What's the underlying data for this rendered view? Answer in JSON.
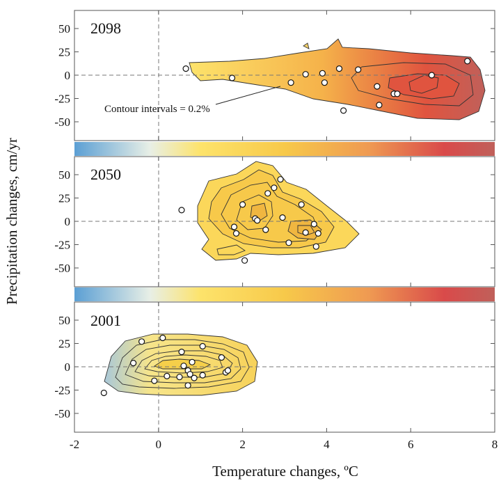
{
  "figure": {
    "xlabel": "Temperature changes, ºC",
    "ylabel": "Precipitation changes, cm/yr",
    "annotation": "Contour intervals = 0.2%",
    "colors": {
      "bar_stops": [
        "#5b9fd4",
        "#e8efe6",
        "#fde36b",
        "#f7c94a",
        "#ef9a52",
        "#d94a4a",
        "#c0605a"
      ],
      "contour_fill_2098": [
        "#fde06a",
        "#f2a050",
        "#d94a46"
      ],
      "contour_fill_2050": [
        "#fbd75a",
        "#f0b640"
      ],
      "contour_fill_2001": [
        "#b8cfd8",
        "#f7e27a",
        "#f5cf4a"
      ]
    }
  },
  "chart_data": [
    {
      "type": "scatter",
      "panel": "2098",
      "title": "2098",
      "xlabel": "Temperature changes, ºC",
      "ylabel": "Precipitation changes, cm/yr",
      "xlim": [
        -2,
        8
      ],
      "ylim": [
        -70,
        70
      ],
      "x_ticks": [
        "-2",
        "0",
        "2",
        "4",
        "6",
        "8"
      ],
      "y_ticks": [
        "50",
        "25",
        "0",
        "-25",
        "-50"
      ],
      "points": [
        {
          "x": 0.65,
          "y": 7
        },
        {
          "x": 1.75,
          "y": -3
        },
        {
          "x": 3.15,
          "y": -8
        },
        {
          "x": 3.5,
          "y": 1
        },
        {
          "x": 3.9,
          "y": 2
        },
        {
          "x": 3.95,
          "y": -8
        },
        {
          "x": 4.3,
          "y": 7
        },
        {
          "x": 4.4,
          "y": -38
        },
        {
          "x": 4.75,
          "y": 6
        },
        {
          "x": 5.2,
          "y": -12
        },
        {
          "x": 5.25,
          "y": -32
        },
        {
          "x": 5.6,
          "y": -20
        },
        {
          "x": 5.68,
          "y": -20
        },
        {
          "x": 6.5,
          "y": 0
        },
        {
          "x": 7.35,
          "y": 15
        }
      ],
      "grid": false
    },
    {
      "type": "scatter",
      "panel": "2050",
      "title": "2050",
      "xlabel": "Temperature changes, ºC",
      "ylabel": "Precipitation changes, cm/yr",
      "xlim": [
        -2,
        8
      ],
      "ylim": [
        -70,
        70
      ],
      "x_ticks": [
        "-2",
        "0",
        "2",
        "4",
        "6",
        "8"
      ],
      "y_ticks": [
        "50",
        "25",
        "0",
        "-25",
        "-50"
      ],
      "points": [
        {
          "x": 0.55,
          "y": 12
        },
        {
          "x": 1.8,
          "y": -6
        },
        {
          "x": 1.85,
          "y": -13
        },
        {
          "x": 2.0,
          "y": 18
        },
        {
          "x": 2.05,
          "y": -42
        },
        {
          "x": 2.3,
          "y": 3
        },
        {
          "x": 2.35,
          "y": 1
        },
        {
          "x": 2.6,
          "y": 30
        },
        {
          "x": 2.75,
          "y": 36
        },
        {
          "x": 2.55,
          "y": -9
        },
        {
          "x": 2.9,
          "y": 45
        },
        {
          "x": 2.95,
          "y": 4
        },
        {
          "x": 3.1,
          "y": -23
        },
        {
          "x": 3.4,
          "y": 18
        },
        {
          "x": 3.5,
          "y": -12
        },
        {
          "x": 3.7,
          "y": -3
        },
        {
          "x": 3.75,
          "y": -27
        },
        {
          "x": 3.8,
          "y": -13
        }
      ],
      "grid": false
    },
    {
      "type": "scatter",
      "panel": "2001",
      "title": "2001",
      "xlabel": "Temperature changes, ºC",
      "ylabel": "Precipitation changes, cm/yr",
      "xlim": [
        -2,
        8
      ],
      "ylim": [
        -70,
        70
      ],
      "x_ticks": [
        "-2",
        "0",
        "2",
        "4",
        "6",
        "8"
      ],
      "y_ticks": [
        "50",
        "25",
        "0",
        "-25",
        "-50"
      ],
      "points": [
        {
          "x": -1.3,
          "y": -28
        },
        {
          "x": -0.6,
          "y": 4
        },
        {
          "x": -0.4,
          "y": 27
        },
        {
          "x": -0.1,
          "y": -15
        },
        {
          "x": 0.1,
          "y": 31
        },
        {
          "x": 0.2,
          "y": -10
        },
        {
          "x": 0.5,
          "y": -11
        },
        {
          "x": 0.55,
          "y": 16
        },
        {
          "x": 0.6,
          "y": 1
        },
        {
          "x": 0.7,
          "y": -4
        },
        {
          "x": 0.7,
          "y": -20
        },
        {
          "x": 0.75,
          "y": -8
        },
        {
          "x": 0.8,
          "y": 5
        },
        {
          "x": 0.85,
          "y": -12
        },
        {
          "x": 1.05,
          "y": 22
        },
        {
          "x": 1.05,
          "y": -9
        },
        {
          "x": 1.5,
          "y": 10
        },
        {
          "x": 1.6,
          "y": -6
        },
        {
          "x": 1.65,
          "y": -4
        }
      ],
      "grid": false
    }
  ]
}
